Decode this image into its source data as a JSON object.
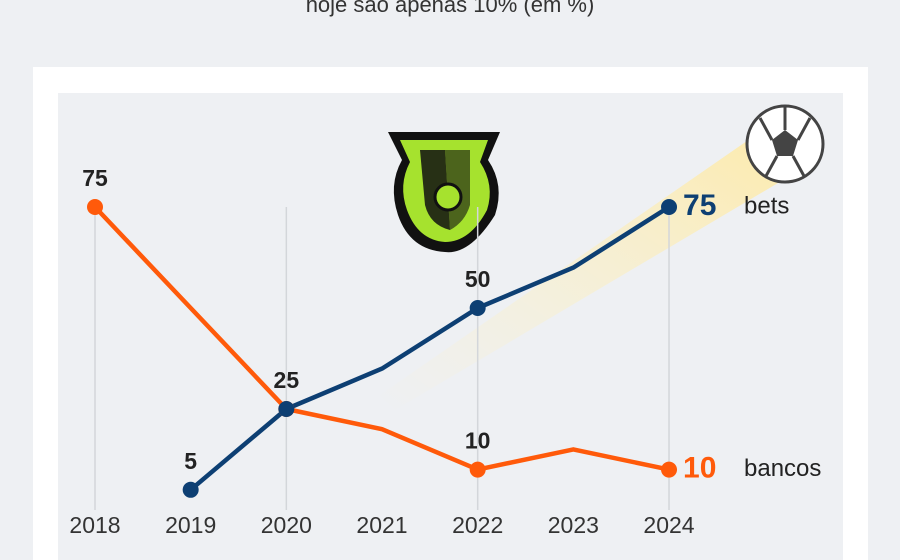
{
  "chart_data": {
    "type": "line",
    "subtitle": "hoje são apenas 10% (em %)",
    "categories": [
      "2018",
      "2019",
      "2020",
      "2021",
      "2022",
      "2023",
      "2024"
    ],
    "ylim": [
      0,
      75
    ],
    "grid_at": [
      0,
      2,
      4,
      6
    ],
    "series": [
      {
        "name": "bets",
        "color": "#0d3f73",
        "values": [
          null,
          5,
          25,
          35,
          50,
          60,
          75
        ],
        "markers_at": [
          1,
          2,
          4,
          6
        ],
        "labels_at": [
          1,
          2,
          4,
          6
        ]
      },
      {
        "name": "bancos",
        "color": "#ff5a0a",
        "values": [
          75,
          50,
          25,
          20,
          10,
          15,
          10
        ],
        "markers_at": [
          0,
          2,
          4,
          6
        ],
        "labels_at": [
          0,
          4,
          6
        ]
      }
    ]
  }
}
